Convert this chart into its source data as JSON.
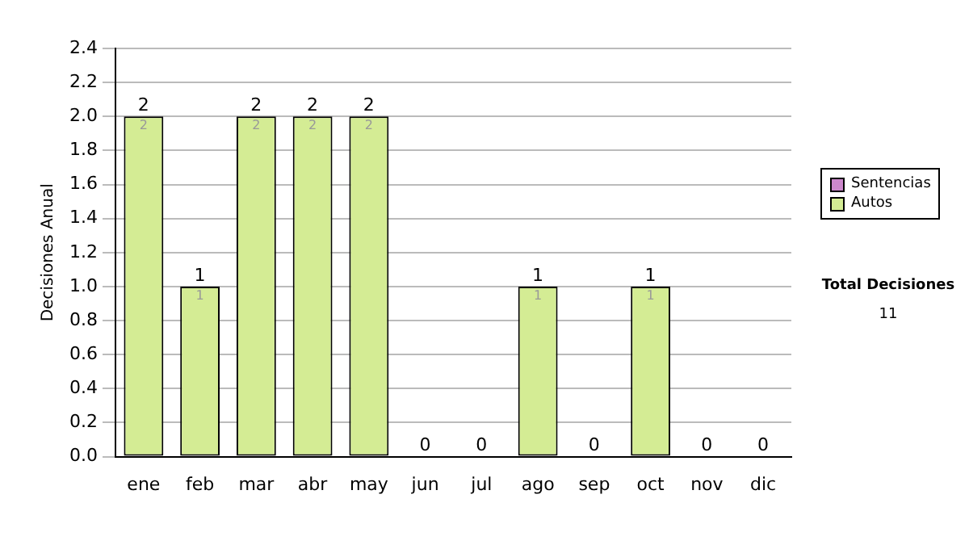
{
  "chart_data": {
    "type": "bar",
    "stacked": true,
    "ylabel": "Decisiones Anual",
    "categories": [
      "ene",
      "feb",
      "mar",
      "abr",
      "may",
      "jun",
      "jul",
      "ago",
      "sep",
      "oct",
      "nov",
      "dic"
    ],
    "series": [
      {
        "name": "Sentencias",
        "color": "#cc88cc",
        "values": [
          0,
          0,
          0,
          0,
          0,
          0,
          0,
          0,
          0,
          0,
          0,
          0
        ]
      },
      {
        "name": "Autos",
        "color": "#d4ec94",
        "values": [
          2,
          1,
          2,
          2,
          2,
          0,
          0,
          1,
          0,
          1,
          0,
          0
        ],
        "value_labels": [
          "2",
          "1",
          "2",
          "2",
          "2",
          null,
          null,
          "1",
          null,
          "1",
          null,
          null
        ]
      }
    ],
    "totals": [
      "2",
      "1",
      "2",
      "2",
      "2",
      "0",
      "0",
      "1",
      "0",
      "1",
      "0",
      "0"
    ],
    "ylim": [
      0,
      2.4
    ],
    "yticks": [
      {
        "value": 0,
        "label": "0.0"
      },
      0.2,
      0.4,
      0.6,
      0.8,
      {
        "value": 1,
        "label": "1.0"
      },
      1.2,
      1.4,
      1.6,
      1.8,
      {
        "value": 2,
        "label": "2.0"
      },
      2.2,
      2.4
    ],
    "grid": "y",
    "legend": "right",
    "annotations": [
      "Total Decisiones",
      "11"
    ]
  }
}
